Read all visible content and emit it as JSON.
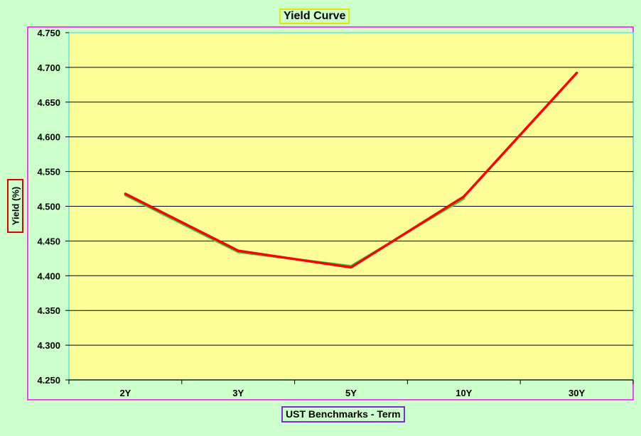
{
  "chart_data": {
    "type": "line",
    "title": "Yield Curve",
    "xlabel": "UST Benchmarks - Term",
    "ylabel": "Yield (%)",
    "categories": [
      "2Y",
      "3Y",
      "5Y",
      "10Y",
      "30Y"
    ],
    "ylim": [
      4.25,
      4.75
    ],
    "yticks": [
      "4.250",
      "4.300",
      "4.350",
      "4.400",
      "4.450",
      "4.500",
      "4.550",
      "4.600",
      "4.650",
      "4.700",
      "4.750"
    ],
    "grid": true,
    "series": [
      {
        "values": [
          4.518,
          4.436,
          4.412,
          4.514,
          4.692
        ],
        "color": "#ff0000"
      },
      {
        "values": [
          4.516,
          4.434,
          4.414,
          4.511,
          null
        ],
        "color": "#33cc33"
      }
    ],
    "colors": {
      "background": "#ccffcc",
      "plot_area": "#ffff99",
      "grid": "#000000"
    }
  }
}
